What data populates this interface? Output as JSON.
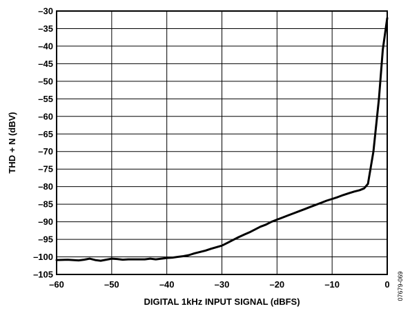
{
  "chart_data": {
    "type": "line",
    "title": "",
    "xlabel": "DIGITAL 1kHz INPUT SIGNAL (dBFS)",
    "ylabel": "THD + N (dBV)",
    "xlim": [
      -60,
      0
    ],
    "ylim": [
      -105,
      -30
    ],
    "xticks": [
      -60,
      -50,
      -40,
      -30,
      -20,
      -10,
      0
    ],
    "xtick_labels": [
      "–60",
      "–50",
      "–40",
      "–30",
      "–20",
      "–10",
      "0"
    ],
    "yticks": [
      -30,
      -35,
      -40,
      -45,
      -50,
      -55,
      -60,
      -65,
      -70,
      -75,
      -80,
      -85,
      -90,
      -95,
      -100,
      -105
    ],
    "ytick_labels": [
      "–30",
      "–35",
      "–40",
      "–45",
      "–50",
      "–55",
      "–60",
      "–65",
      "–70",
      "–75",
      "–80",
      "–85",
      "–90",
      "–95",
      "–100",
      "–105"
    ],
    "grid": true,
    "legend": "none",
    "line_color": "#000000",
    "series": [
      {
        "x": [
          -60,
          -58,
          -56,
          -55,
          -54,
          -53,
          -52,
          -51,
          -50,
          -49,
          -48,
          -47,
          -46,
          -45,
          -44,
          -43,
          -42,
          -41,
          -40,
          -39,
          -38,
          -37,
          -36,
          -35,
          -34,
          -33,
          -32,
          -30,
          -29,
          -28,
          -27,
          -26,
          -25,
          -24,
          -23,
          -22,
          -21,
          -20,
          -19,
          -18,
          -17,
          -16,
          -15,
          -14,
          -13,
          -12,
          -11,
          -10,
          -9,
          -8,
          -7,
          -6,
          -5,
          -4.2,
          -3.5,
          -2.5,
          -1.5,
          -0.8,
          0
        ],
        "y": [
          -100.9,
          -100.8,
          -101.0,
          -100.8,
          -100.5,
          -100.9,
          -101.1,
          -100.8,
          -100.5,
          -100.6,
          -100.8,
          -100.7,
          -100.7,
          -100.7,
          -100.7,
          -100.5,
          -100.7,
          -100.5,
          -100.3,
          -100.2,
          -100.0,
          -99.8,
          -99.5,
          -99.0,
          -98.6,
          -98.2,
          -97.7,
          -96.8,
          -96.0,
          -95.2,
          -94.4,
          -93.7,
          -93.0,
          -92.2,
          -91.4,
          -90.8,
          -90.0,
          -89.4,
          -88.8,
          -88.2,
          -87.6,
          -87.0,
          -86.4,
          -85.8,
          -85.2,
          -84.6,
          -84.0,
          -83.5,
          -83.0,
          -82.4,
          -81.9,
          -81.4,
          -81.0,
          -80.5,
          -79.2,
          -70.0,
          -55.0,
          -41.0,
          -32.0
        ]
      }
    ]
  },
  "figure_id": "07679-069"
}
